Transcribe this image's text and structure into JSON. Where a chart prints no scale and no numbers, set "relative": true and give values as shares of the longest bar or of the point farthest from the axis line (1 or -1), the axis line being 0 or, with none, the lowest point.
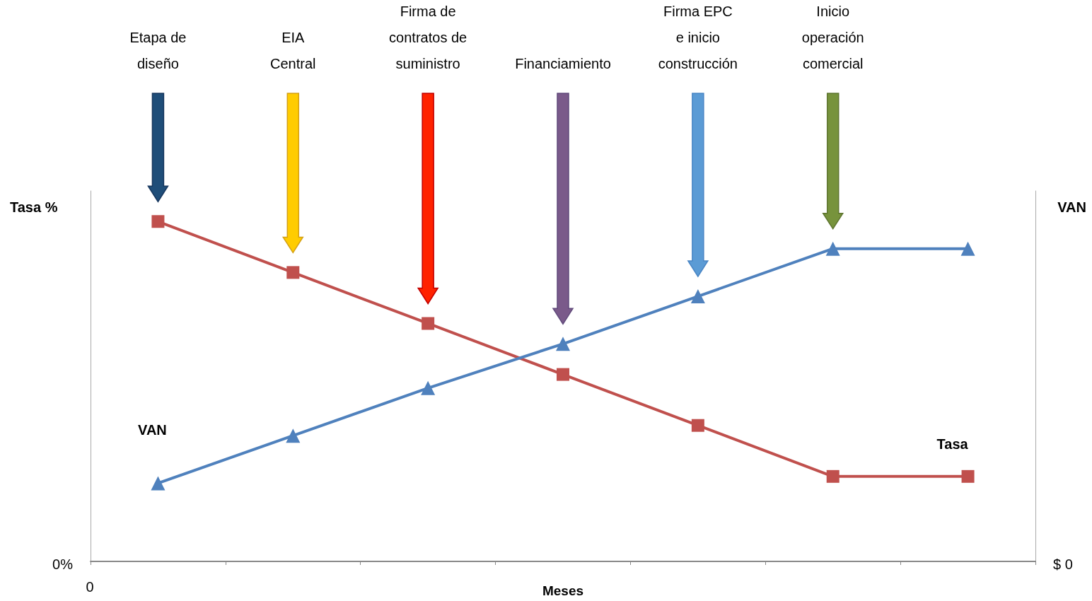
{
  "chart_data": {
    "type": "line",
    "relative": true,
    "xlabel": "Meses",
    "ylabel": "Tasa %",
    "y2label": "VAN",
    "categories": [
      null,
      null,
      null,
      null,
      null,
      null,
      null
    ],
    "series": [
      {
        "name": "Tasa",
        "color": "#c0504d",
        "marker": "square",
        "values": [
          1,
          0.85,
          0.7,
          0.55,
          0.4,
          0.25,
          0.25
        ]
      },
      {
        "name": "VAN",
        "color": "#4f81bd",
        "marker": "triangle",
        "values": [
          0.23,
          0.37,
          0.51,
          0.64,
          0.78,
          0.92,
          0.92
        ]
      }
    ],
    "annotations": [
      "Etapa de\ndiseño",
      "EIA\nCentral",
      "Firma de\ncontratos de\nsuministro",
      "Financiamiento",
      "Firma EPC\ne inicio\nconstrucción",
      "Inicio\noperación\ncomercial",
      "0%",
      "$ 0",
      "0"
    ],
    "grid": false,
    "legend": false,
    "line_style": "solid"
  }
}
